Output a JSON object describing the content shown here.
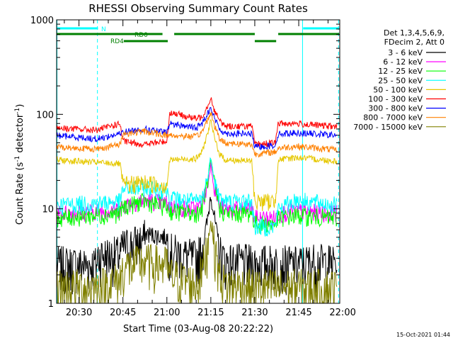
{
  "chart_data": {
    "type": "line",
    "title": "RHESSI Observing Summary Count Rates",
    "xlabel": "Start Time (03-Aug-08 20:22:22)",
    "ylabel_main": "Count Rate (s",
    "ylabel_sup1": "-1",
    "ylabel_mid": " detector",
    "ylabel_sup2": "-1",
    "ylabel_end": ")",
    "x_unit": "minutes after 20:00 UT",
    "xlim": [
      22.37,
      119.0
    ],
    "ylim": [
      1,
      1000
    ],
    "yscale": "log",
    "x_ticks": [
      {
        "value": 30,
        "label": "20:30"
      },
      {
        "value": 45,
        "label": "20:45"
      },
      {
        "value": 60,
        "label": "21:00"
      },
      {
        "value": 75,
        "label": "21:15"
      },
      {
        "value": 90,
        "label": "21:30"
      },
      {
        "value": 105,
        "label": "21:45"
      },
      {
        "value": 120,
        "label": "22:00"
      }
    ],
    "y_ticks": [
      {
        "value": 1,
        "label": "1"
      },
      {
        "value": 10,
        "label": "10"
      },
      {
        "value": 100,
        "label": "100"
      },
      {
        "value": 1000,
        "label": "1000"
      }
    ],
    "info_lines": [
      "Det 1,3,4,5,6,9,",
      "FDecim 2, Att 0"
    ],
    "series": [
      {
        "name": "3 - 6 keV",
        "color": "#000000",
        "x": [
          22.4,
          36,
          36.5,
          44,
          45,
          52,
          53,
          60,
          61,
          70,
          72,
          74,
          75,
          76,
          78,
          80,
          90,
          97,
          104,
          110,
          118
        ],
        "y": [
          2.6,
          2.6,
          3.3,
          3.3,
          4.0,
          4.7,
          5.5,
          5.0,
          3.6,
          3.0,
          3.8,
          8.0,
          15.0,
          9.0,
          3.5,
          2.8,
          2.7,
          2.7,
          2.6,
          2.8,
          2.7
        ]
      },
      {
        "name": "6 - 12 keV",
        "color": "#ff00ff",
        "x": [
          22.4,
          36,
          44,
          45,
          52,
          60,
          61,
          70,
          72,
          74,
          75,
          76,
          78,
          80,
          89,
          90,
          97,
          98,
          104,
          118
        ],
        "y": [
          9.0,
          9.5,
          10,
          11,
          12.5,
          11.5,
          10.5,
          10,
          11,
          18,
          30,
          18,
          11,
          10,
          10,
          8,
          8,
          9,
          9.5,
          9
        ]
      },
      {
        "name": "12 - 25 keV",
        "color": "#00ff00",
        "x": [
          22.4,
          36,
          44,
          45,
          52,
          60,
          61,
          70,
          72,
          74,
          75,
          76,
          78,
          80,
          89,
          90,
          97,
          98,
          104,
          118
        ],
        "y": [
          8.0,
          8.5,
          9,
          10.5,
          12,
          10.5,
          9.5,
          9,
          10,
          20,
          33,
          20,
          10,
          9,
          9,
          7,
          7,
          8,
          8.5,
          8
        ]
      },
      {
        "name": "25 - 50 keV",
        "color": "#00ffff",
        "x": [
          22.4,
          36,
          44,
          45,
          52,
          60,
          61,
          70,
          72,
          74,
          75,
          76,
          78,
          80,
          89,
          90,
          97,
          98,
          104,
          118
        ],
        "y": [
          11,
          11.5,
          12,
          16,
          17,
          16,
          13,
          12,
          13,
          22,
          36,
          22,
          13,
          12,
          12,
          6.5,
          6.5,
          10,
          12.5,
          11
        ]
      },
      {
        "name": "50 - 100 keV",
        "color": "#e6c800",
        "x": [
          22.4,
          36,
          44,
          45,
          52,
          60,
          61,
          70,
          72,
          74,
          75,
          76,
          78,
          80,
          89,
          90,
          97,
          98,
          104,
          118
        ],
        "y": [
          33,
          31,
          30,
          18,
          19,
          18,
          33,
          34,
          40,
          65,
          85,
          60,
          38,
          33,
          32,
          12,
          12,
          33,
          35,
          32
        ]
      },
      {
        "name": "100 - 300 keV",
        "color": "#ff0000",
        "x": [
          22.4,
          36,
          44,
          45,
          52,
          60,
          61,
          70,
          72,
          74,
          75,
          76,
          78,
          80,
          89,
          90,
          97,
          98,
          104,
          118
        ],
        "y": [
          72,
          68,
          80,
          52,
          48,
          52,
          105,
          90,
          95,
          125,
          150,
          115,
          85,
          75,
          75,
          48,
          50,
          80,
          80,
          74
        ]
      },
      {
        "name": "300 - 800 keV",
        "color": "#0000ff",
        "x": [
          22.4,
          36,
          44,
          45,
          52,
          60,
          61,
          70,
          72,
          74,
          75,
          76,
          78,
          80,
          89,
          90,
          97,
          98,
          104,
          118
        ],
        "y": [
          60,
          55,
          62,
          65,
          70,
          64,
          80,
          72,
          80,
          105,
          120,
          95,
          70,
          63,
          62,
          45,
          47,
          62,
          64,
          60
        ]
      },
      {
        "name": "800 - 7000 keV",
        "color": "#ff8000",
        "x": [
          22.4,
          36,
          44,
          45,
          52,
          60,
          61,
          70,
          72,
          74,
          75,
          76,
          78,
          80,
          89,
          90,
          97,
          98,
          104,
          118
        ],
        "y": [
          45,
          43,
          48,
          62,
          66,
          60,
          60,
          58,
          65,
          90,
          105,
          80,
          55,
          50,
          48,
          38,
          40,
          44,
          46,
          42
        ]
      },
      {
        "name": "7000 - 15000 keV",
        "color": "#808000",
        "x": [
          22.4,
          36,
          44,
          45,
          52,
          60,
          61,
          70,
          72,
          74,
          75,
          76,
          78,
          80,
          90,
          97,
          104,
          118
        ],
        "y": [
          1.5,
          1.5,
          1.8,
          2.4,
          2.8,
          2.6,
          2.0,
          1.6,
          2.2,
          4.5,
          8.0,
          4.5,
          2.0,
          1.6,
          1.5,
          1.5,
          1.5,
          1.5
        ]
      }
    ],
    "flag_bars": [
      {
        "name": "N",
        "label": "N",
        "color": "#00ffff",
        "segments": [
          [
            22.4,
            36.5
          ],
          [
            106.5,
            118.8
          ]
        ]
      },
      {
        "name": "RD0",
        "label": "RD0",
        "color": "#008000",
        "segments": [
          [
            22.4,
            58.5
          ],
          [
            62.5,
            90.0
          ],
          [
            98.0,
            118.8
          ]
        ]
      },
      {
        "name": "RD4",
        "label": "RD4",
        "color": "#008000",
        "segments": [
          [
            45.3,
            60.3
          ],
          [
            90.0,
            97.3
          ]
        ]
      }
    ],
    "vertical_markers": [
      {
        "x": 22.5,
        "style": "solid"
      },
      {
        "x": 36.3,
        "style": "dashed"
      },
      {
        "x": 106.3,
        "style": "solid"
      },
      {
        "x": 118.6,
        "style": "dashed"
      }
    ]
  },
  "timestamp": "15-Oct-2021 01:44"
}
